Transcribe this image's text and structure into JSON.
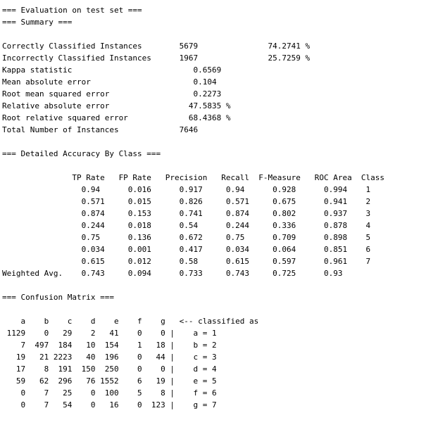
{
  "output_panel": {
    "eval_header": "=== Evaluation on test set ===",
    "summary_header": "=== Summary ===",
    "summary_rows": [
      "Correctly Classified Instances        5679               74.2741 %",
      "Incorrectly Classified Instances      1967               25.7259 %",
      "Kappa statistic                          0.6569",
      "Mean absolute error                      0.104",
      "Root mean squared error                  0.2273",
      "Relative absolute error                 47.5835 %",
      "Root relative squared error             68.4368 %",
      "Total Number of Instances             7646"
    ],
    "accuracy_header": "=== Detailed Accuracy By Class ===",
    "accuracy_table": [
      "               TP Rate   FP Rate   Precision   Recall  F-Measure   ROC Area  Class",
      "                 0.94      0.016      0.917     0.94      0.928      0.994    1",
      "                 0.571     0.015      0.826     0.571     0.675      0.941    2",
      "                 0.874     0.153      0.741     0.874     0.802      0.937    3",
      "                 0.244     0.018      0.54      0.244     0.336      0.878    4",
      "                 0.75      0.136      0.672     0.75      0.709      0.898    5",
      "                 0.034     0.001      0.417     0.034     0.064      0.851    6",
      "                 0.615     0.012      0.58      0.615     0.597      0.961    7",
      "Weighted Avg.    0.743     0.094      0.733     0.743     0.725      0.93"
    ],
    "confusion_header": "=== Confusion Matrix ===",
    "confusion_matrix": [
      "    a    b    c    d    e    f    g   <-- classified as",
      " 1129    0   29    2   41    0    0 |    a = 1",
      "    7  497  184   10  154    1   18 |    b = 2",
      "   19   21 2223   40  196    0   44 |    c = 3",
      "   17    8  191  150  250    0    0 |    d = 4",
      "   59   62  296   76 1552    6   19 |    e = 5",
      "    0    7   25    0  100    5    8 |    f = 6",
      "    0    7   54    0   16    0  123 |    g = 7"
    ]
  }
}
